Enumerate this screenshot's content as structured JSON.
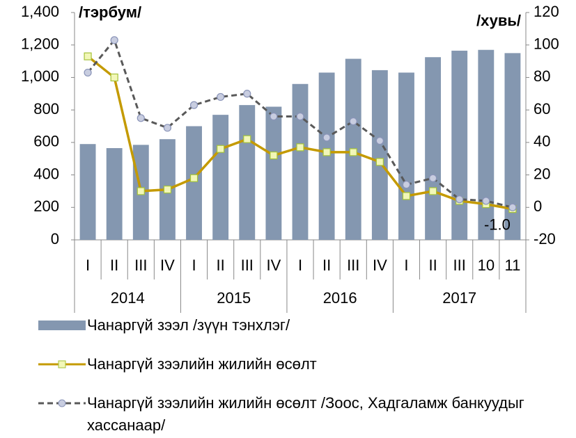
{
  "chart_data": {
    "type": "bar_line",
    "y_label": "/тэрбум/",
    "y2_label": "/хувь/",
    "category_groups": [
      {
        "label": "2014",
        "categories": [
          "I",
          "II",
          "III",
          "IV"
        ]
      },
      {
        "label": "2015",
        "categories": [
          "I",
          "II",
          "III",
          "IV"
        ]
      },
      {
        "label": "2016",
        "categories": [
          "I",
          "II",
          "III",
          "IV"
        ]
      },
      {
        "label": "2017",
        "categories": [
          "I",
          "II",
          "III",
          "10",
          "11"
        ]
      }
    ],
    "ylim": [
      0,
      1400
    ],
    "yticks": [
      0,
      200,
      400,
      600,
      800,
      {
        "value": 1000,
        "label": "1,000"
      },
      {
        "value": 1200,
        "label": "1,200"
      },
      {
        "value": 1400,
        "label": "1,400"
      }
    ],
    "y2lim": [
      -20,
      120
    ],
    "y2ticks": [
      -20,
      0,
      20,
      40,
      60,
      80,
      100,
      120
    ],
    "series": [
      {
        "name": "Чанаргүй зээл /зүүн тэнхлэг/",
        "kind": "bar",
        "color": "#8497b0",
        "values": [
          590,
          565,
          585,
          620,
          700,
          770,
          830,
          820,
          960,
          1030,
          1115,
          1045,
          1030,
          1125,
          1165,
          1170,
          1150
        ]
      },
      {
        "name": "Чанаргүй зээлийн жилийн өсөлт",
        "kind": "line",
        "axis": "y2",
        "color": "#c49a00",
        "marker_fill": "#f2f7b8",
        "marker_stroke": "#a4c23a",
        "values": [
          93,
          80,
          10,
          11,
          18,
          36,
          42,
          32,
          37,
          34,
          34,
          28,
          7,
          10,
          4,
          2,
          -1.0
        ],
        "value_labels": [
          null,
          null,
          null,
          null,
          null,
          null,
          null,
          null,
          null,
          null,
          null,
          null,
          null,
          null,
          null,
          null,
          "-1.0"
        ]
      },
      {
        "name": "Чанаргүй зээлийн жилийн өсөлт /Зоос, Хадгаламж банкуудыг хассанаар/",
        "kind": "line",
        "axis": "y2",
        "dash": true,
        "color": "#595959",
        "marker_fill": "#c8cde0",
        "marker_stroke": "#8a94b8",
        "values": [
          83,
          103,
          55,
          49,
          63,
          68,
          70,
          56,
          56,
          43,
          53,
          41,
          14,
          18,
          5,
          4,
          0
        ]
      }
    ]
  }
}
